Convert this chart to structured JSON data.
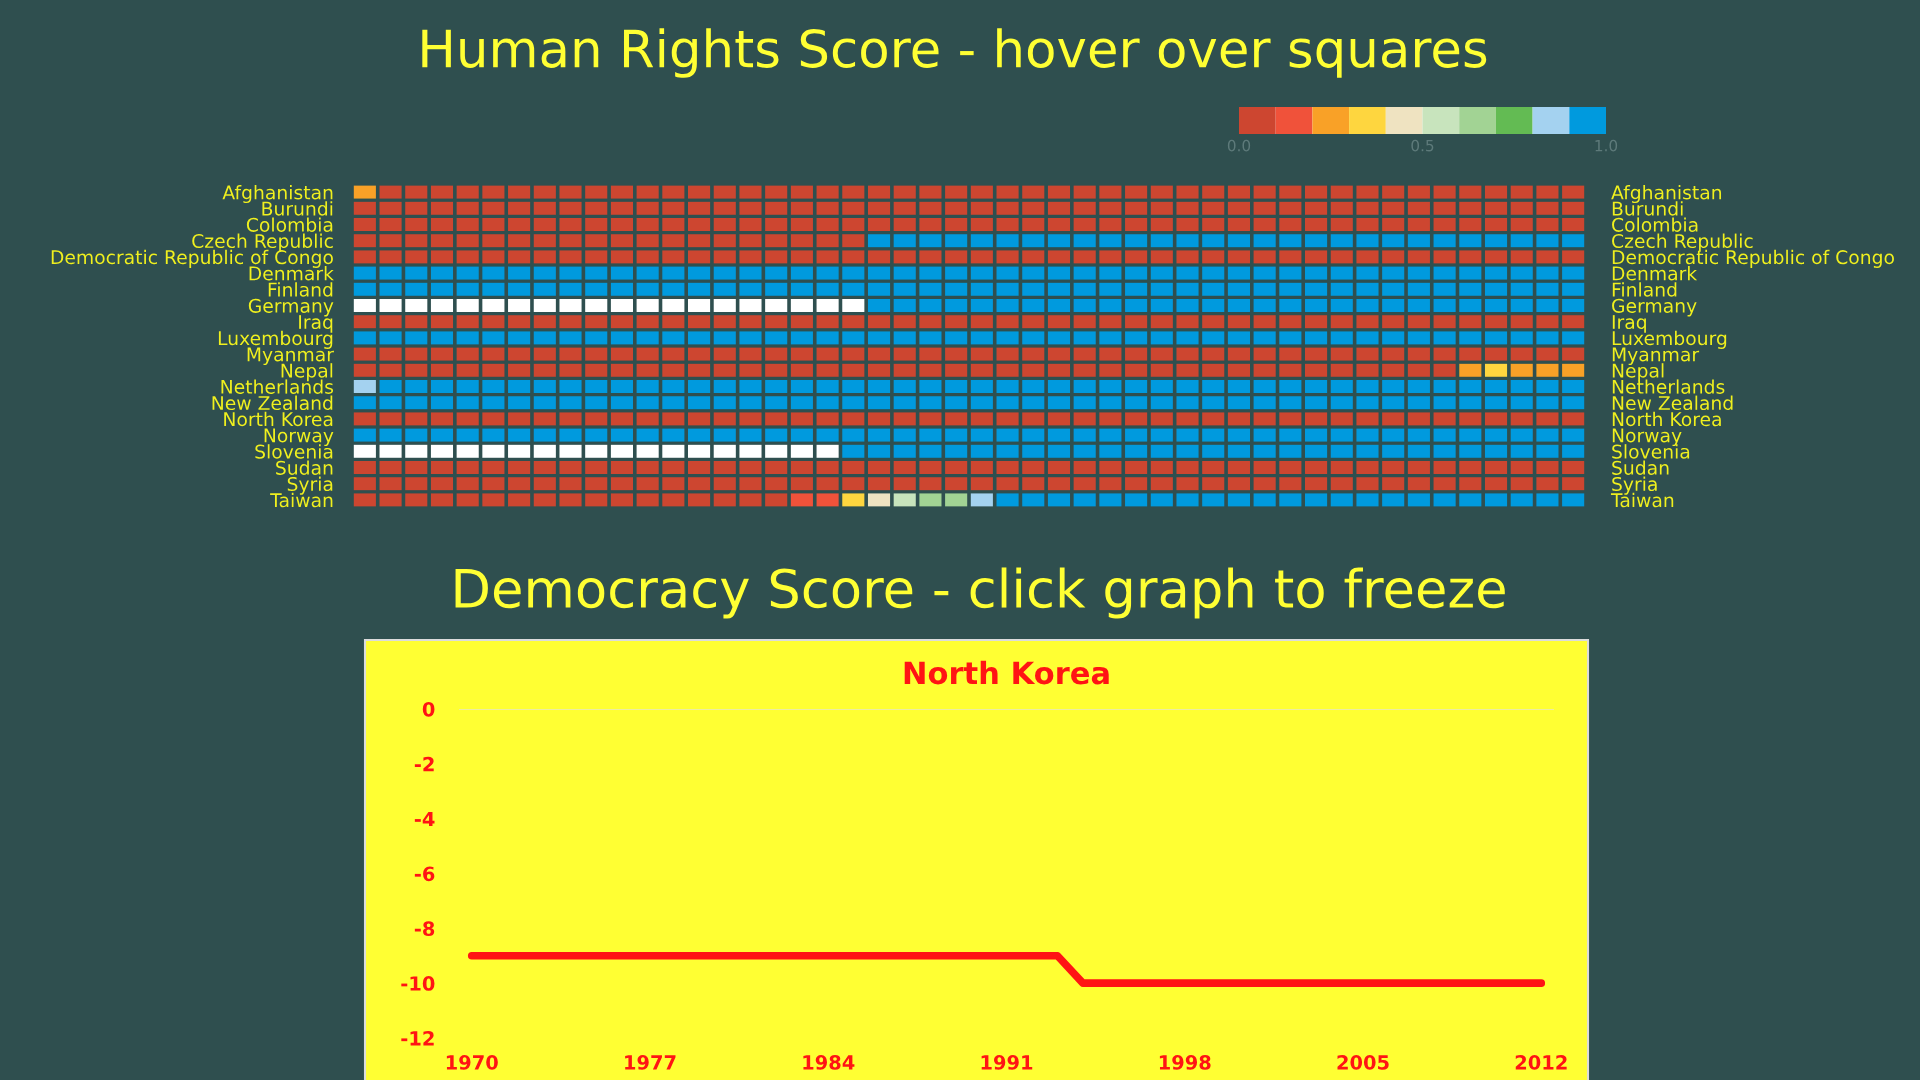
{
  "chart_data": [
    {
      "type": "heatmap",
      "title": "Human Rights Score - hover over squares",
      "categories": [
        null,
        null,
        null,
        null,
        null,
        null,
        null,
        null,
        null,
        null,
        null,
        null,
        null,
        null,
        null,
        null,
        null,
        null,
        null,
        null,
        null,
        null,
        null,
        null,
        null,
        null,
        null,
        null,
        null,
        null,
        null,
        null,
        null,
        null,
        null,
        null,
        null,
        null,
        null,
        null,
        null,
        null,
        null,
        null,
        null,
        null,
        null,
        null
      ],
      "y_categories": [
        "Afghanistan",
        "Burundi",
        "Colombia",
        "Czech Republic",
        "Democratic Republic of Congo",
        "Denmark",
        "Finland",
        "Germany",
        "Iraq",
        "Luxembourg",
        "Myanmar",
        "Nepal",
        "Netherlands",
        "New Zealand",
        "North Korea",
        "Norway",
        "Slovenia",
        "Sudan",
        "Syria",
        "Taiwan"
      ],
      "y2_categories": [
        "Afghanistan",
        "Burundi",
        "Colombia",
        "Czech Republic",
        "Democratic Republic of Congo",
        "Denmark",
        "Finland",
        "Germany",
        "Iraq",
        "Luxembourg",
        "Myanmar",
        "Nepal",
        "Netherlands",
        "New Zealand",
        "North Korea",
        "Norway",
        "Slovenia",
        "Sudan",
        "Syria",
        "Taiwan"
      ],
      "cells": [
        [
          0.25,
          0.05,
          0.05,
          0.05,
          0.05,
          0.05,
          0.05,
          0.05,
          0.05,
          0.05,
          0.05,
          0.05,
          0.05,
          0.05,
          0.05,
          0.05,
          0.05,
          0.05,
          0.05,
          0.05,
          0.05,
          0.05,
          0.05,
          0.05,
          0.05,
          0.05,
          0.05,
          0.05,
          0.05,
          0.05,
          0.05,
          0.05,
          0.05,
          0.05,
          0.05,
          0.05,
          0.05,
          0.05,
          0.05,
          0.05,
          0.05,
          0.05,
          0.05,
          0.05,
          0.05,
          0.05,
          0.05,
          0.05
        ],
        [
          0.05,
          0.05,
          0.05,
          0.05,
          0.05,
          0.05,
          0.05,
          0.05,
          0.05,
          0.05,
          0.05,
          0.05,
          0.05,
          0.05,
          0.05,
          0.05,
          0.05,
          0.05,
          0.05,
          0.05,
          0.05,
          0.05,
          0.05,
          0.05,
          0.05,
          0.05,
          0.05,
          0.05,
          0.05,
          0.05,
          0.05,
          0.05,
          0.05,
          0.05,
          0.05,
          0.05,
          0.05,
          0.05,
          0.05,
          0.05,
          0.05,
          0.05,
          0.05,
          0.05,
          0.05,
          0.05,
          0.05,
          0.05
        ],
        [
          0.05,
          0.05,
          0.05,
          0.05,
          0.05,
          0.05,
          0.05,
          0.05,
          0.05,
          0.05,
          0.05,
          0.05,
          0.05,
          0.05,
          0.05,
          0.05,
          0.05,
          0.05,
          0.05,
          0.05,
          0.05,
          0.05,
          0.05,
          0.05,
          0.05,
          0.05,
          0.05,
          0.05,
          0.05,
          0.05,
          0.05,
          0.05,
          0.05,
          0.05,
          0.05,
          0.05,
          0.05,
          0.05,
          0.05,
          0.05,
          0.05,
          0.05,
          0.05,
          0.05,
          0.05,
          0.05,
          0.05,
          0.05
        ],
        [
          0.05,
          0.05,
          0.05,
          0.05,
          0.05,
          0.05,
          0.05,
          0.05,
          0.05,
          0.05,
          0.05,
          0.05,
          0.05,
          0.05,
          0.05,
          0.05,
          0.05,
          0.05,
          0.05,
          0.05,
          0.95,
          0.95,
          0.95,
          0.95,
          0.95,
          0.95,
          0.95,
          0.95,
          0.95,
          0.95,
          0.95,
          0.95,
          0.95,
          0.95,
          0.95,
          0.95,
          0.95,
          0.95,
          0.95,
          0.95,
          0.95,
          0.95,
          0.95,
          0.95,
          0.95,
          0.95,
          0.95,
          0.95
        ],
        [
          0.05,
          0.05,
          0.05,
          0.05,
          0.05,
          0.05,
          0.05,
          0.05,
          0.05,
          0.05,
          0.05,
          0.05,
          0.05,
          0.05,
          0.05,
          0.05,
          0.05,
          0.05,
          0.05,
          0.05,
          0.05,
          0.05,
          0.05,
          0.05,
          0.05,
          0.05,
          0.05,
          0.05,
          0.05,
          0.05,
          0.05,
          0.05,
          0.05,
          0.05,
          0.05,
          0.05,
          0.05,
          0.05,
          0.05,
          0.05,
          0.05,
          0.05,
          0.05,
          0.05,
          0.05,
          0.05,
          0.05,
          0.05
        ],
        [
          0.95,
          0.95,
          0.95,
          0.95,
          0.95,
          0.95,
          0.95,
          0.95,
          0.95,
          0.95,
          0.95,
          0.95,
          0.95,
          0.95,
          0.95,
          0.95,
          0.95,
          0.95,
          0.95,
          0.95,
          0.95,
          0.95,
          0.95,
          0.95,
          0.95,
          0.95,
          0.95,
          0.95,
          0.95,
          0.95,
          0.95,
          0.95,
          0.95,
          0.95,
          0.95,
          0.95,
          0.95,
          0.95,
          0.95,
          0.95,
          0.95,
          0.95,
          0.95,
          0.95,
          0.95,
          0.95,
          0.95,
          0.95
        ],
        [
          0.95,
          0.95,
          0.95,
          0.95,
          0.95,
          0.95,
          0.95,
          0.95,
          0.95,
          0.95,
          0.95,
          0.95,
          0.95,
          0.95,
          0.95,
          0.95,
          0.95,
          0.95,
          0.95,
          0.95,
          0.95,
          0.95,
          0.95,
          0.95,
          0.95,
          0.95,
          0.95,
          0.95,
          0.95,
          0.95,
          0.95,
          0.95,
          0.95,
          0.95,
          0.95,
          0.95,
          0.95,
          0.95,
          0.95,
          0.95,
          0.95,
          0.95,
          0.95,
          0.95,
          0.95,
          0.95,
          0.95,
          0.95
        ],
        [
          null,
          null,
          null,
          null,
          null,
          null,
          null,
          null,
          null,
          null,
          null,
          null,
          null,
          null,
          null,
          null,
          null,
          null,
          null,
          null,
          0.95,
          0.95,
          0.95,
          0.95,
          0.95,
          0.95,
          0.95,
          0.95,
          0.95,
          0.95,
          0.95,
          0.95,
          0.95,
          0.95,
          0.95,
          0.95,
          0.95,
          0.95,
          0.95,
          0.95,
          0.95,
          0.95,
          0.95,
          0.95,
          0.95,
          0.95,
          0.95,
          0.95
        ],
        [
          0.05,
          0.05,
          0.05,
          0.05,
          0.05,
          0.05,
          0.05,
          0.05,
          0.05,
          0.05,
          0.05,
          0.05,
          0.05,
          0.05,
          0.05,
          0.05,
          0.05,
          0.05,
          0.05,
          0.05,
          0.05,
          0.05,
          0.05,
          0.05,
          0.05,
          0.05,
          0.05,
          0.05,
          0.05,
          0.05,
          0.05,
          0.05,
          0.05,
          0.05,
          0.05,
          0.05,
          0.05,
          0.05,
          0.05,
          0.05,
          0.05,
          0.05,
          0.05,
          0.05,
          0.05,
          0.05,
          0.05,
          0.05
        ],
        [
          0.95,
          0.95,
          0.95,
          0.95,
          0.95,
          0.95,
          0.95,
          0.95,
          0.95,
          0.95,
          0.95,
          0.95,
          0.95,
          0.95,
          0.95,
          0.95,
          0.95,
          0.95,
          0.95,
          0.95,
          0.95,
          0.95,
          0.95,
          0.95,
          0.95,
          0.95,
          0.95,
          0.95,
          0.95,
          0.95,
          0.95,
          0.95,
          0.95,
          0.95,
          0.95,
          0.95,
          0.95,
          0.95,
          0.95,
          0.95,
          0.95,
          0.95,
          0.95,
          0.95,
          0.95,
          0.95,
          0.95,
          0.95
        ],
        [
          0.05,
          0.05,
          0.05,
          0.05,
          0.05,
          0.05,
          0.05,
          0.05,
          0.05,
          0.05,
          0.05,
          0.05,
          0.05,
          0.05,
          0.05,
          0.05,
          0.05,
          0.05,
          0.05,
          0.05,
          0.05,
          0.05,
          0.05,
          0.05,
          0.05,
          0.05,
          0.05,
          0.05,
          0.05,
          0.05,
          0.05,
          0.05,
          0.05,
          0.05,
          0.05,
          0.05,
          0.05,
          0.05,
          0.05,
          0.05,
          0.05,
          0.05,
          0.05,
          0.05,
          0.05,
          0.05,
          0.05,
          0.05
        ],
        [
          0.05,
          0.05,
          0.05,
          0.05,
          0.05,
          0.05,
          0.05,
          0.05,
          0.05,
          0.05,
          0.05,
          0.05,
          0.05,
          0.05,
          0.05,
          0.05,
          0.05,
          0.05,
          0.05,
          0.05,
          0.05,
          0.05,
          0.05,
          0.05,
          0.05,
          0.05,
          0.05,
          0.05,
          0.05,
          0.05,
          0.05,
          0.05,
          0.05,
          0.05,
          0.05,
          0.05,
          0.05,
          0.05,
          0.05,
          0.05,
          0.05,
          0.05,
          0.05,
          0.25,
          0.35,
          0.25,
          0.25,
          0.25
        ],
        [
          0.85,
          0.95,
          0.95,
          0.95,
          0.95,
          0.95,
          0.95,
          0.95,
          0.95,
          0.95,
          0.95,
          0.95,
          0.95,
          0.95,
          0.95,
          0.95,
          0.95,
          0.95,
          0.95,
          0.95,
          0.95,
          0.95,
          0.95,
          0.95,
          0.95,
          0.95,
          0.95,
          0.95,
          0.95,
          0.95,
          0.95,
          0.95,
          0.95,
          0.95,
          0.95,
          0.95,
          0.95,
          0.95,
          0.95,
          0.95,
          0.95,
          0.95,
          0.95,
          0.95,
          0.95,
          0.95,
          0.95,
          0.95
        ],
        [
          0.95,
          0.95,
          0.95,
          0.95,
          0.95,
          0.95,
          0.95,
          0.95,
          0.95,
          0.95,
          0.95,
          0.95,
          0.95,
          0.95,
          0.95,
          0.95,
          0.95,
          0.95,
          0.95,
          0.95,
          0.95,
          0.95,
          0.95,
          0.95,
          0.95,
          0.95,
          0.95,
          0.95,
          0.95,
          0.95,
          0.95,
          0.95,
          0.95,
          0.95,
          0.95,
          0.95,
          0.95,
          0.95,
          0.95,
          0.95,
          0.95,
          0.95,
          0.95,
          0.95,
          0.95,
          0.95,
          0.95,
          0.95
        ],
        [
          0.05,
          0.05,
          0.05,
          0.05,
          0.05,
          0.05,
          0.05,
          0.05,
          0.05,
          0.05,
          0.05,
          0.05,
          0.05,
          0.05,
          0.05,
          0.05,
          0.05,
          0.05,
          0.05,
          0.05,
          0.05,
          0.05,
          0.05,
          0.05,
          0.05,
          0.05,
          0.05,
          0.05,
          0.05,
          0.05,
          0.05,
          0.05,
          0.05,
          0.05,
          0.05,
          0.05,
          0.05,
          0.05,
          0.05,
          0.05,
          0.05,
          0.05,
          0.05,
          0.05,
          0.05,
          0.05,
          0.05,
          0.05
        ],
        [
          0.95,
          0.95,
          0.95,
          0.95,
          0.95,
          0.95,
          0.95,
          0.95,
          0.95,
          0.95,
          0.95,
          0.95,
          0.95,
          0.95,
          0.95,
          0.95,
          0.95,
          0.95,
          0.95,
          0.95,
          0.95,
          0.95,
          0.95,
          0.95,
          0.95,
          0.95,
          0.95,
          0.95,
          0.95,
          0.95,
          0.95,
          0.95,
          0.95,
          0.95,
          0.95,
          0.95,
          0.95,
          0.95,
          0.95,
          0.95,
          0.95,
          0.95,
          0.95,
          0.95,
          0.95,
          0.95,
          0.95,
          0.95
        ],
        [
          null,
          null,
          null,
          null,
          null,
          null,
          null,
          null,
          null,
          null,
          null,
          null,
          null,
          null,
          null,
          null,
          null,
          null,
          null,
          0.95,
          0.95,
          0.95,
          0.95,
          0.95,
          0.95,
          0.95,
          0.95,
          0.95,
          0.95,
          0.95,
          0.95,
          0.95,
          0.95,
          0.95,
          0.95,
          0.95,
          0.95,
          0.95,
          0.95,
          0.95,
          0.95,
          0.95,
          0.95,
          0.95,
          0.95,
          0.95,
          0.95,
          0.95
        ],
        [
          0.05,
          0.05,
          0.05,
          0.05,
          0.05,
          0.05,
          0.05,
          0.05,
          0.05,
          0.05,
          0.05,
          0.05,
          0.05,
          0.05,
          0.05,
          0.05,
          0.05,
          0.05,
          0.05,
          0.05,
          0.05,
          0.05,
          0.05,
          0.05,
          0.05,
          0.05,
          0.05,
          0.05,
          0.05,
          0.05,
          0.05,
          0.05,
          0.05,
          0.05,
          0.05,
          0.05,
          0.05,
          0.05,
          0.05,
          0.05,
          0.05,
          0.05,
          0.05,
          0.05,
          0.05,
          0.05,
          0.05,
          0.05
        ],
        [
          0.05,
          0.05,
          0.05,
          0.05,
          0.05,
          0.05,
          0.05,
          0.05,
          0.05,
          0.05,
          0.05,
          0.05,
          0.05,
          0.05,
          0.05,
          0.05,
          0.05,
          0.05,
          0.05,
          0.05,
          0.05,
          0.05,
          0.05,
          0.05,
          0.05,
          0.05,
          0.05,
          0.05,
          0.05,
          0.05,
          0.05,
          0.05,
          0.05,
          0.05,
          0.05,
          0.05,
          0.05,
          0.05,
          0.05,
          0.05,
          0.05,
          0.05,
          0.05,
          0.05,
          0.05,
          0.05,
          0.05,
          0.05
        ],
        [
          0.05,
          0.05,
          0.05,
          0.05,
          0.05,
          0.05,
          0.05,
          0.05,
          0.05,
          0.05,
          0.05,
          0.05,
          0.05,
          0.05,
          0.05,
          0.05,
          0.05,
          0.15,
          0.15,
          0.35,
          0.45,
          0.55,
          0.65,
          0.65,
          0.85,
          0.95,
          0.95,
          0.95,
          0.95,
          0.95,
          0.95,
          0.95,
          0.95,
          0.95,
          0.95,
          0.95,
          0.95,
          0.95,
          0.95,
          0.95,
          0.95,
          0.95,
          0.95,
          0.95,
          0.95,
          0.95,
          0.95,
          0.95
        ]
      ],
      "colors": [
        "#cd4630",
        "#f0523a",
        "#f9a127",
        "#fed63f",
        "#efe3c1",
        "#c8e4bd",
        "#a2d394",
        "#63bb53",
        "#a4d2f0",
        "#009ade"
      ],
      "clim": [
        0,
        1
      ],
      "cticks": [
        {
          "value": 0,
          "label": "0.0"
        },
        {
          "value": 0.5,
          "label": "0.5"
        },
        {
          "value": 1,
          "label": "1.0"
        }
      ]
    },
    {
      "type": "line",
      "title": "Democracy Score - click graph to freeze",
      "subtitle": "North Korea",
      "x": [
        1970,
        1993,
        1994,
        2012
      ],
      "series": [
        {
          "color": "#ff1414",
          "values": [
            -9,
            -9,
            -10,
            -10
          ]
        }
      ],
      "xlim": [
        1969.5,
        2012.5
      ],
      "ylim": [
        -12,
        0
      ],
      "xticks": [
        1970,
        1977,
        1984,
        1991,
        1998,
        2005,
        2012
      ],
      "yticks": [
        0,
        -2,
        -4,
        -6,
        -8,
        -10,
        -12
      ],
      "ref_lines": [
        {
          "axis": "y",
          "value": 0,
          "color": "#e6e6c8"
        }
      ]
    }
  ]
}
